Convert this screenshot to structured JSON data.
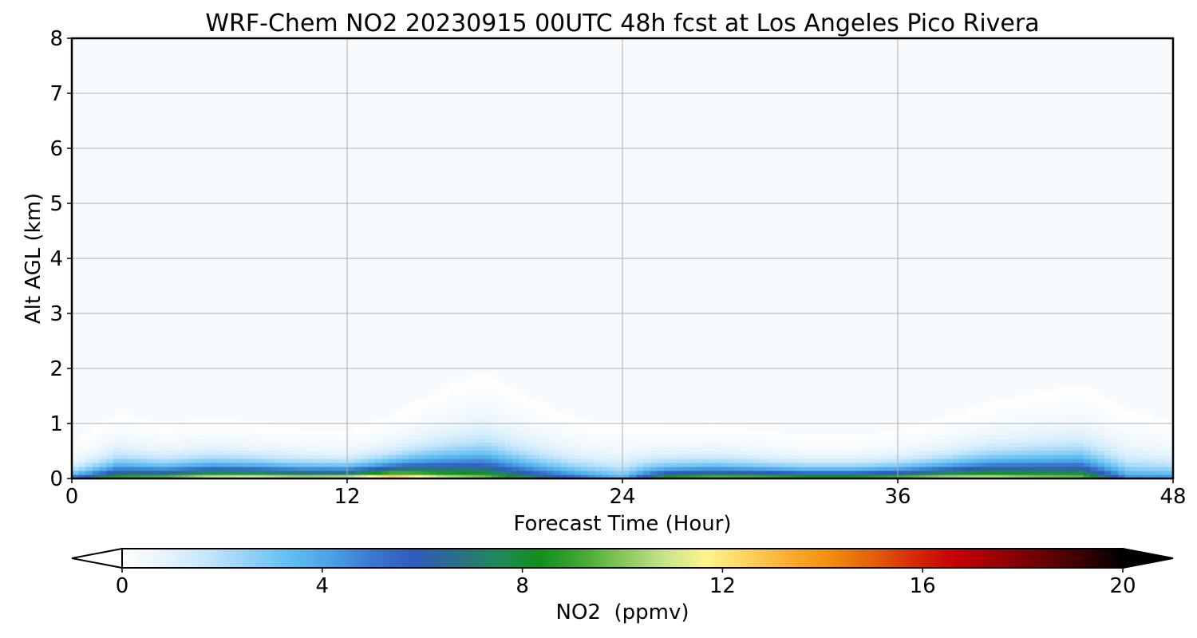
{
  "chart_data": {
    "type": "heatmap",
    "title": "WRF-Chem NO2  20230915 00UTC 48h fcst at Los Angeles Pico Rivera",
    "xlabel": "Forecast Time (Hour)",
    "ylabel": "Alt AGL (km)",
    "xlim": [
      0,
      48
    ],
    "ylim": [
      0,
      8
    ],
    "xticks": [
      0,
      12,
      24,
      36,
      48
    ],
    "yticks": [
      0,
      1,
      2,
      3,
      4,
      5,
      6,
      7,
      8
    ],
    "grid": true,
    "colorbar": {
      "label": "NO2  (ppmv)",
      "orientation": "horizontal",
      "range": [
        0,
        20
      ],
      "ticks": [
        0,
        4,
        8,
        12,
        16,
        20
      ],
      "extend": "both",
      "colors": [
        "#ffffff",
        "#e6f4fd",
        "#c6e7fb",
        "#94d2f8",
        "#61c0f2",
        "#4aa2e6",
        "#3a78d0",
        "#2f5bbd",
        "#2b6e8a",
        "#1f8a5a",
        "#108f1c",
        "#42a833",
        "#86c65a",
        "#c6e38a",
        "#fff48c",
        "#fdd35e",
        "#fbad2f",
        "#f28d0c",
        "#e4600a",
        "#d52a08",
        "#c50005",
        "#9a0005",
        "#6d0005",
        "#3a0003",
        "#000000"
      ]
    },
    "profile_times": [
      0,
      2,
      4,
      6,
      8,
      10,
      12,
      14,
      16,
      18,
      20,
      22,
      24,
      26,
      28,
      30,
      32,
      34,
      36,
      38,
      40,
      42,
      44,
      46,
      48
    ],
    "profile_surface_ppmv": [
      6,
      10,
      11,
      12.5,
      13,
      12.5,
      13,
      15,
      12,
      10.5,
      8,
      6,
      4,
      10,
      11,
      11,
      10.5,
      10.5,
      11,
      12,
      12,
      11,
      10.5,
      5,
      5
    ],
    "profile_decay_height_km": [
      0.15,
      0.25,
      0.2,
      0.22,
      0.2,
      0.18,
      0.17,
      0.22,
      0.32,
      0.4,
      0.32,
      0.25,
      0.25,
      0.2,
      0.2,
      0.18,
      0.16,
      0.16,
      0.18,
      0.22,
      0.28,
      0.32,
      0.35,
      0.3,
      0.25
    ]
  }
}
